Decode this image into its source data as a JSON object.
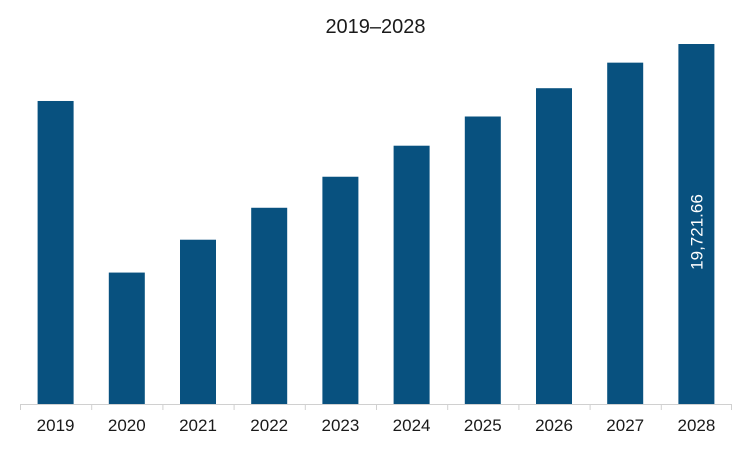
{
  "chart_data": {
    "type": "bar",
    "title": "2019–2028",
    "xlabel": "",
    "ylabel": "",
    "categories": [
      "2019",
      "2020",
      "2021",
      "2022",
      "2023",
      "2024",
      "2025",
      "2026",
      "2027",
      "2028"
    ],
    "values": [
      16600,
      7200,
      9000,
      10750,
      12450,
      14150,
      15750,
      17300,
      18700,
      19721.66
    ],
    "data_labels": [
      null,
      null,
      null,
      null,
      null,
      null,
      null,
      null,
      null,
      "19,721.66"
    ],
    "ylim": [
      0,
      20000
    ],
    "grid": false,
    "legend": "none",
    "colors": {
      "bar": "#08517f",
      "axis": "#d0d0d0",
      "text": "#1a1a1a",
      "label_text": "#ffffff"
    }
  }
}
